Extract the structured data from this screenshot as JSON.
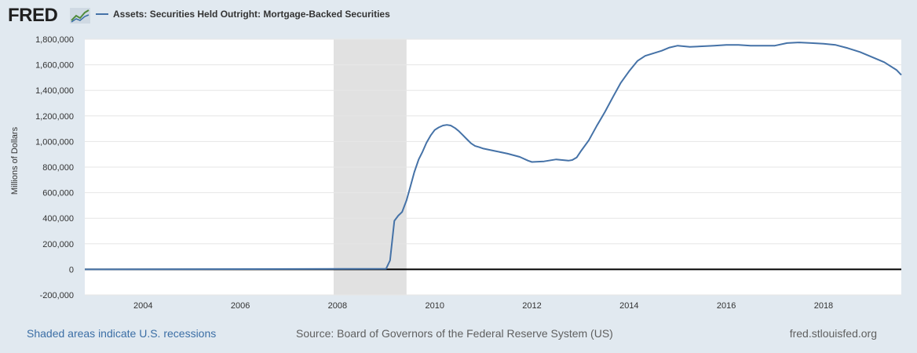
{
  "brand": {
    "logo_text": "FRED",
    "logo_icon": "fred-chart-icon"
  },
  "footer": {
    "recession_note": "Shaded areas indicate U.S. recessions",
    "source": "Source: Board of Governors of the Federal Reserve System (US)",
    "site": "fred.stlouisfed.org"
  },
  "colors": {
    "series": "#4572a7",
    "recession": "#e1e1e1",
    "background": "#e1e9f0",
    "plot_bg": "#ffffff",
    "grid": "#e6e6e6",
    "zero_line": "#000000"
  },
  "chart_data": {
    "type": "line",
    "title": "",
    "ylabel": "Millions of Dollars",
    "xlabel": "",
    "ylim": [
      -200000,
      1800000
    ],
    "xlim": [
      2002.8,
      2019.6
    ],
    "yticks": [
      -200000,
      0,
      200000,
      400000,
      600000,
      800000,
      1000000,
      1200000,
      1400000,
      1600000,
      1800000
    ],
    "ytick_labels": [
      "-200,000",
      "0",
      "200,000",
      "400,000",
      "600,000",
      "800,000",
      "1,000,000",
      "1,200,000",
      "1,400,000",
      "1,600,000",
      "1,800,000"
    ],
    "xticks": [
      2004,
      2006,
      2008,
      2010,
      2012,
      2014,
      2016,
      2018
    ],
    "xtick_labels": [
      "2004",
      "2006",
      "2008",
      "2010",
      "2012",
      "2014",
      "2016",
      "2018"
    ],
    "grid": true,
    "legend_position": "top-left",
    "recessions": [
      [
        2007.92,
        2009.42
      ]
    ],
    "series": [
      {
        "name": "Assets: Securities Held Outright: Mortgage-Backed Securities",
        "x": [
          2002.8,
          2009.0,
          2009.08,
          2009.17,
          2009.25,
          2009.33,
          2009.42,
          2009.5,
          2009.58,
          2009.67,
          2009.75,
          2009.83,
          2009.92,
          2010.0,
          2010.08,
          2010.17,
          2010.25,
          2010.33,
          2010.42,
          2010.5,
          2010.58,
          2010.67,
          2010.75,
          2010.83,
          2010.92,
          2011.0,
          2011.25,
          2011.5,
          2011.75,
          2011.92,
          2012.0,
          2012.25,
          2012.5,
          2012.75,
          2012.83,
          2012.92,
          2013.0,
          2013.17,
          2013.33,
          2013.5,
          2013.67,
          2013.83,
          2014.0,
          2014.17,
          2014.33,
          2014.5,
          2014.67,
          2014.83,
          2015.0,
          2015.25,
          2015.5,
          2015.75,
          2016.0,
          2016.25,
          2016.5,
          2016.75,
          2017.0,
          2017.25,
          2017.5,
          2017.75,
          2018.0,
          2018.25,
          2018.5,
          2018.75,
          2019.0,
          2019.25,
          2019.5,
          2019.6
        ],
        "values": [
          0,
          5000,
          70000,
          380000,
          420000,
          450000,
          540000,
          650000,
          760000,
          860000,
          920000,
          990000,
          1050000,
          1090000,
          1110000,
          1125000,
          1130000,
          1125000,
          1105000,
          1080000,
          1050000,
          1015000,
          985000,
          965000,
          955000,
          945000,
          925000,
          905000,
          880000,
          850000,
          840000,
          845000,
          860000,
          850000,
          855000,
          875000,
          920000,
          1010000,
          1120000,
          1230000,
          1350000,
          1460000,
          1550000,
          1630000,
          1670000,
          1690000,
          1710000,
          1735000,
          1750000,
          1740000,
          1745000,
          1750000,
          1755000,
          1755000,
          1750000,
          1750000,
          1750000,
          1770000,
          1775000,
          1770000,
          1765000,
          1755000,
          1730000,
          1700000,
          1660000,
          1620000,
          1560000,
          1520000
        ]
      }
    ]
  }
}
